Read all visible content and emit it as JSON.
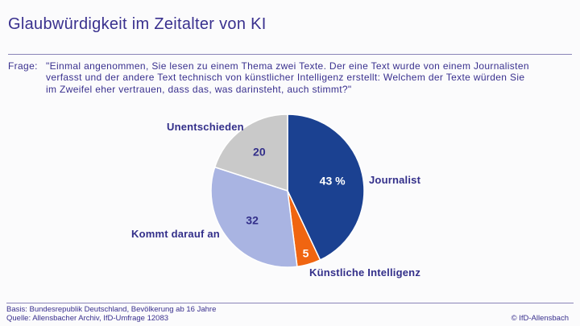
{
  "page": {
    "title": "Glaubwürdigkeit im Zeitalter von KI",
    "accent_color": "#39308e",
    "background_color": "#fbfbfc"
  },
  "question": {
    "label": "Frage:",
    "lines": [
      "\"Einmal angenommen, Sie lesen zu einem Thema zwei Texte. Der eine Text wurde von einem Journalisten",
      "verfasst und der andere Text technisch von künstlicher Intelligenz erstellt: Welchem der Texte würden Sie",
      "im Zweifel eher vertrauen, dass das, was darinsteht, auch stimmt?\""
    ]
  },
  "chart_data": {
    "type": "pie",
    "title": "Glaubwürdigkeit im Zeitalter von KI",
    "unit": "percent",
    "start_angle_deg": 0,
    "direction": "clockwise",
    "legend_position": "outside-labels",
    "slices": [
      {
        "label": "Journalist",
        "value": 43,
        "display_value": "43 %",
        "color": "#1b4191",
        "value_label_color": "#ffffff",
        "value_label_radius": 0.6
      },
      {
        "label": "Künstliche Intelligenz",
        "value": 5,
        "display_value": "5",
        "color": "#f06511",
        "value_label_color": "#ffffff",
        "value_label_radius": 0.85
      },
      {
        "label": "Kommt darauf an",
        "value": 32,
        "display_value": "32",
        "color": "#a9b4e2",
        "value_label_color": "#332f8a",
        "value_label_radius": 0.6
      },
      {
        "label": "Unentschieden",
        "value": 20,
        "display_value": "20",
        "color": "#c9c9c9",
        "value_label_color": "#332f8a",
        "value_label_radius": 0.63
      }
    ]
  },
  "footer": {
    "basis": "Basis: Bundesrepublik Deutschland, Bevölkerung ab 16 Jahre",
    "quelle": "Quelle: Allensbacher Archiv, IfD-Umfrage 12083",
    "copyright": "© IfD-Allensbach"
  }
}
